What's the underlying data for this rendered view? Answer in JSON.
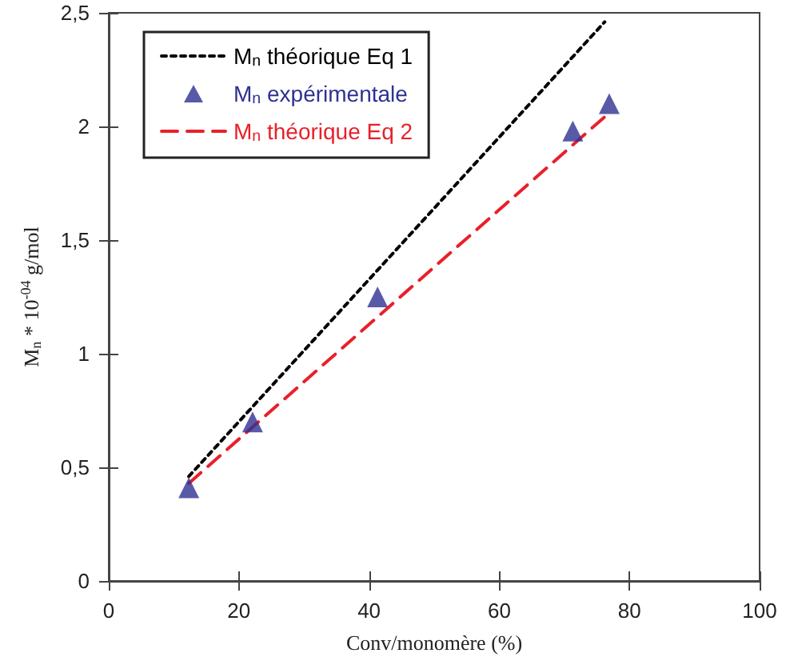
{
  "chart_data": {
    "type": "line",
    "xlabel": "Conv/monomère (%)",
    "ylabel": "M$_{n}$ * 10$^{-04}$ g/mol",
    "xlim": [
      0,
      100
    ],
    "xticks": [
      0,
      20,
      40,
      60,
      80,
      100
    ],
    "ylim": [
      0,
      2.5
    ],
    "yticks": [
      0,
      {
        "value": 0.5,
        "label": "0,5"
      },
      1,
      {
        "value": 1.5,
        "label": "1,5"
      },
      2,
      {
        "value": 2.5,
        "label": "2,5"
      }
    ],
    "grid": false,
    "legend": "top left",
    "series": [
      {
        "name": "M$_{n}$ théorique Eq 1",
        "type": "line",
        "color": "#000000",
        "line_style": "dotted",
        "marker": "none",
        "x": [
          12.3,
          76.2
        ],
        "values": [
          0.46,
          2.46
        ]
      },
      {
        "name": "M$_{n}$ expérimentale",
        "type": "scatter",
        "color": "#2e3192",
        "marker": "triangle",
        "x": [
          12.3,
          22.1,
          41.3,
          71.3,
          76.9
        ],
        "values": [
          0.41,
          0.7,
          1.25,
          1.98,
          2.1
        ]
      },
      {
        "name": "M$_{n}$ théorique Eq 2",
        "type": "line",
        "color": "#e8202a",
        "line_style": "dashed",
        "marker": "none",
        "x": [
          12.3,
          76.9
        ],
        "values": [
          0.43,
          2.06
        ]
      }
    ]
  }
}
